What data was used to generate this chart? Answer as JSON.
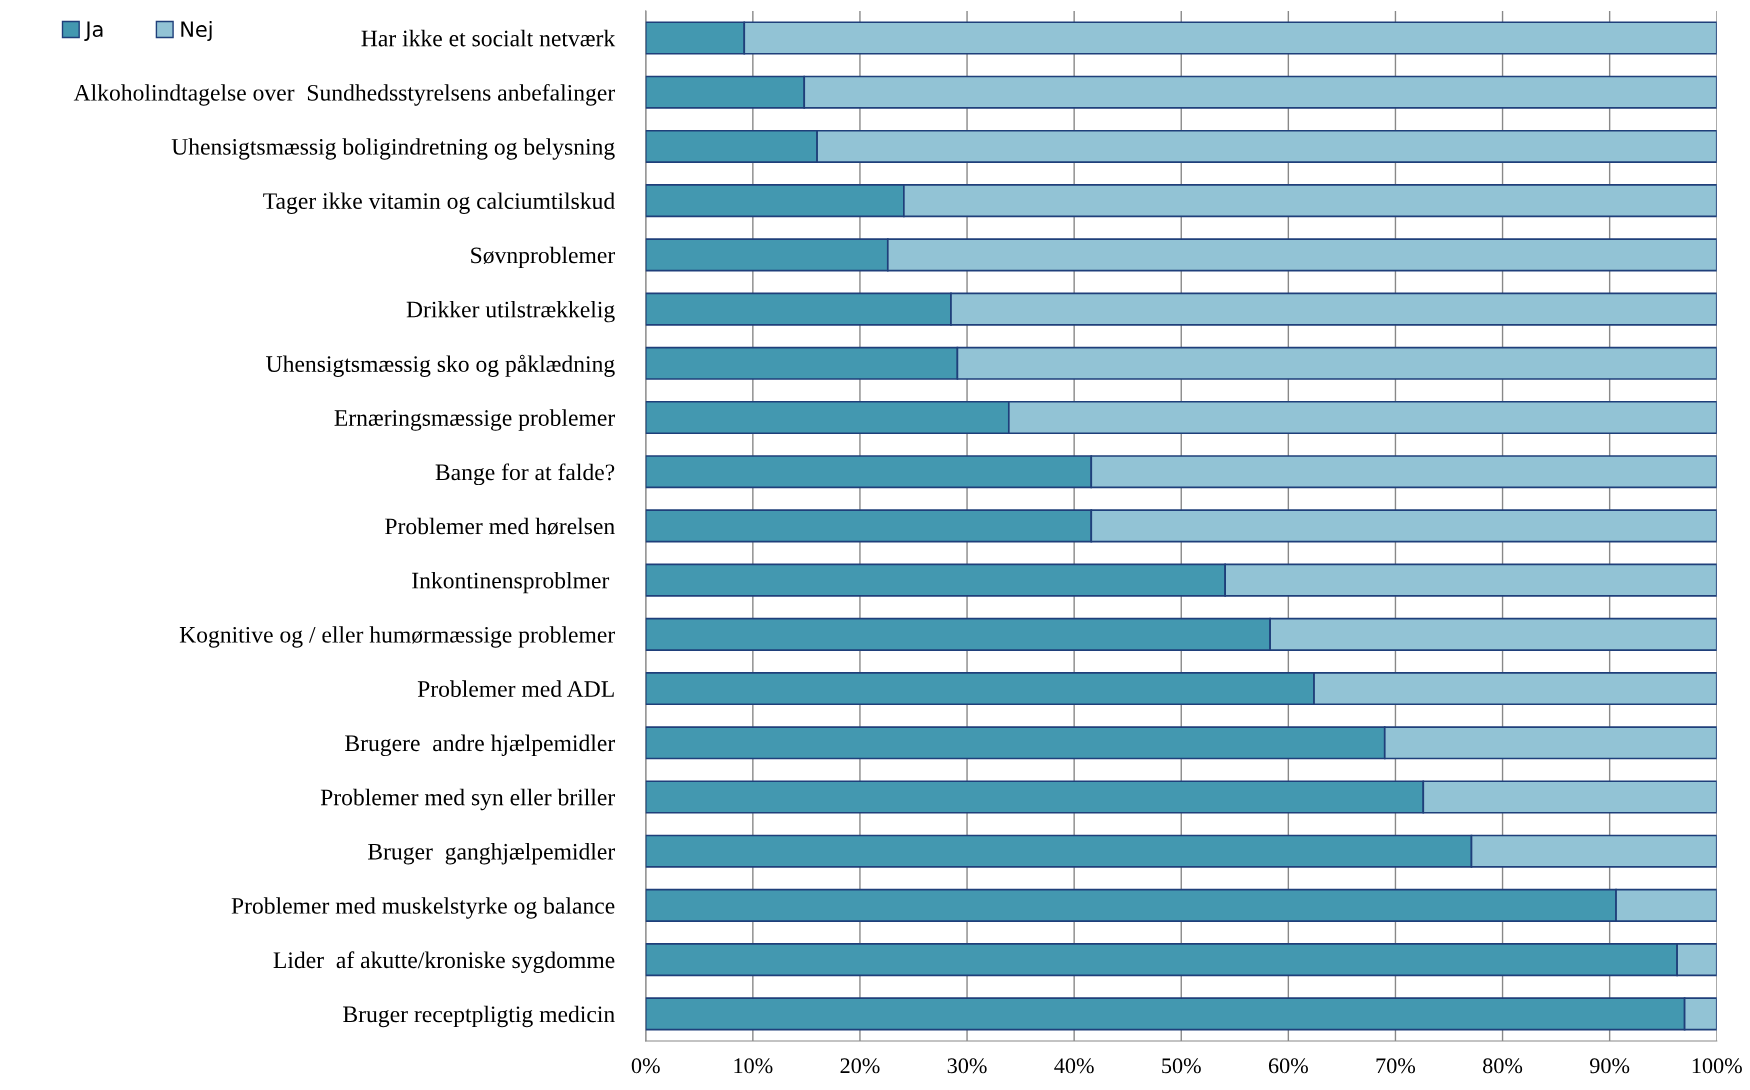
{
  "chart_data": {
    "type": "bar",
    "orientation": "horizontal",
    "stacked": true,
    "categories": [
      "Har ikke et socialt netværk",
      "Alkoholindtagelse over  Sundhedsstyrelsens anbefalinger",
      "Uhensigtsmæssig boligindretning og belysning",
      "Tager ikke vitamin og calciumtilskud",
      "Søvnproblemer",
      "Drikker utilstrækkelig",
      "Uhensigtsmæssig sko og påklædning",
      "Ernæringsmæssige problemer",
      "Bange for at falde?",
      "Problemer med hørelsen",
      "Inkontinensproblmer ",
      "Kognitive og / eller humørmæssige problemer",
      "Problemer med ADL",
      "Brugere  andre hjælpemidler",
      "Problemer med syn eller briller",
      "Bruger  ganghjælpemidler",
      "Problemer med muskelstyrke og balance",
      "Lider  af akutte/kroniske sygdomme",
      "Bruger receptpligtig medicin"
    ],
    "series": [
      {
        "name": "Ja",
        "color": "#4398b0",
        "values": [
          9.2,
          14.8,
          16.0,
          24.1,
          22.6,
          28.5,
          29.1,
          33.9,
          41.6,
          41.6,
          54.1,
          58.3,
          62.4,
          69.0,
          72.6,
          77.1,
          90.6,
          96.3,
          97.0
        ]
      },
      {
        "name": "Nej",
        "color": "#92c3d5",
        "values": [
          90.8,
          85.2,
          84.0,
          75.9,
          77.4,
          71.5,
          70.9,
          66.1,
          58.4,
          58.4,
          45.9,
          41.7,
          37.6,
          31.0,
          27.4,
          22.9,
          9.4,
          3.7,
          3.0
        ]
      }
    ],
    "xlim": [
      0,
      100
    ],
    "xticks": [
      {
        "value": 0,
        "label": "0%"
      },
      {
        "value": 10,
        "label": "10%"
      },
      {
        "value": 20,
        "label": "20%"
      },
      {
        "value": 30,
        "label": "30%"
      },
      {
        "value": 40,
        "label": "40%"
      },
      {
        "value": 50,
        "label": "50%"
      },
      {
        "value": 60,
        "label": "60%"
      },
      {
        "value": 70,
        "label": "70%"
      },
      {
        "value": 80,
        "label": "80%"
      },
      {
        "value": 90,
        "label": "90%"
      },
      {
        "value": 100,
        "label": "100%"
      }
    ],
    "grid": "x",
    "legend": "top left"
  }
}
